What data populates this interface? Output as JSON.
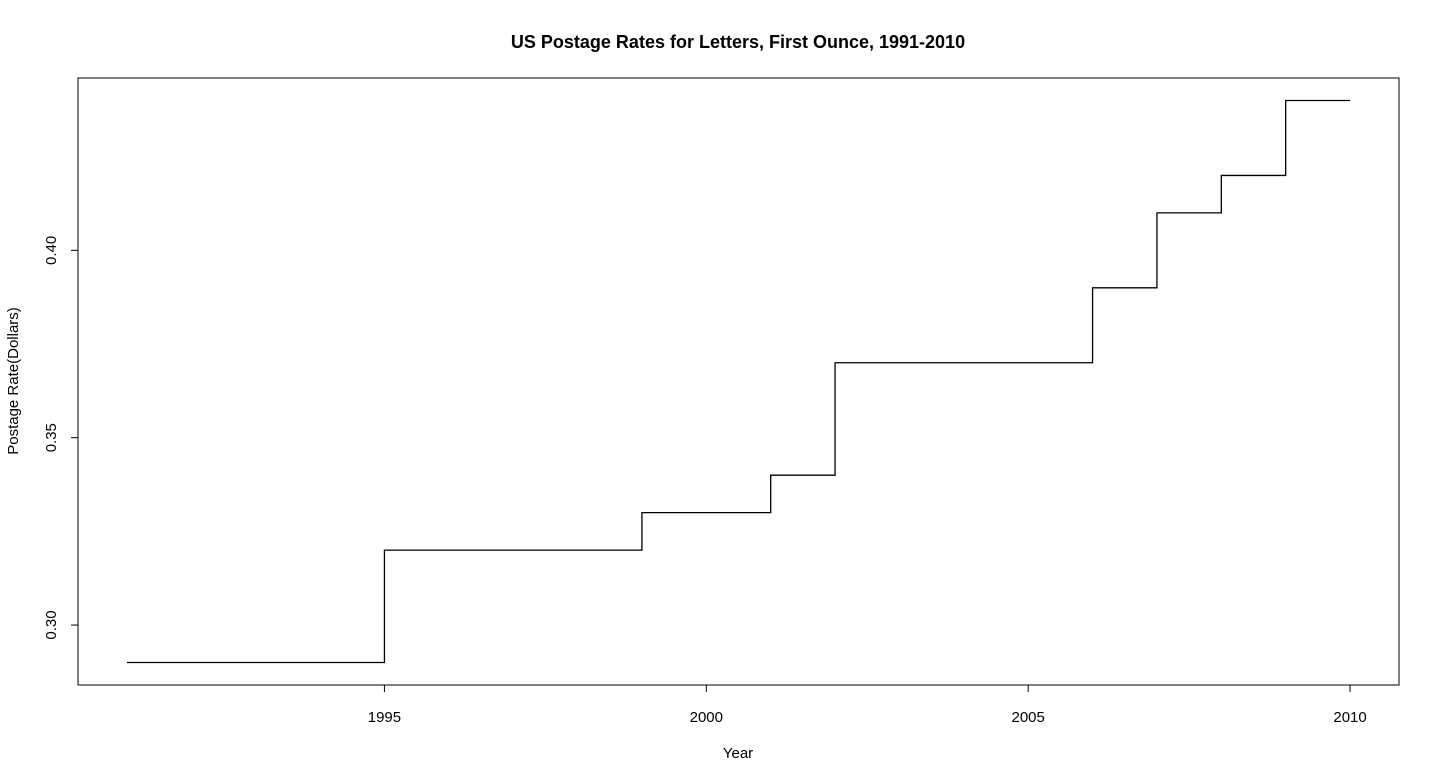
{
  "chart_data": {
    "type": "line",
    "style": "step",
    "title": "US Postage Rates for Letters, First Ounce, 1991-2010",
    "xlabel": "Year",
    "ylabel": "Postage Rate(Dollars)",
    "xlim": [
      1990.24,
      2010.76
    ],
    "ylim": [
      0.284,
      0.446
    ],
    "x_ticks": [
      1995,
      2000,
      2005,
      2010
    ],
    "x_tick_labels": [
      "1995",
      "2000",
      "2005",
      "2010"
    ],
    "y_ticks": [
      0.3,
      0.35,
      0.4
    ],
    "y_tick_labels": [
      "0.30",
      "0.35",
      "0.40"
    ],
    "grid": false,
    "legend": "none",
    "line_color": "#000000",
    "series": [
      {
        "x": [
          1991,
          1995,
          1999,
          2001,
          2002,
          2006,
          2007,
          2008,
          2009,
          2010
        ],
        "values": [
          0.29,
          0.32,
          0.33,
          0.34,
          0.37,
          0.39,
          0.41,
          0.42,
          0.44,
          0.44
        ]
      }
    ]
  }
}
